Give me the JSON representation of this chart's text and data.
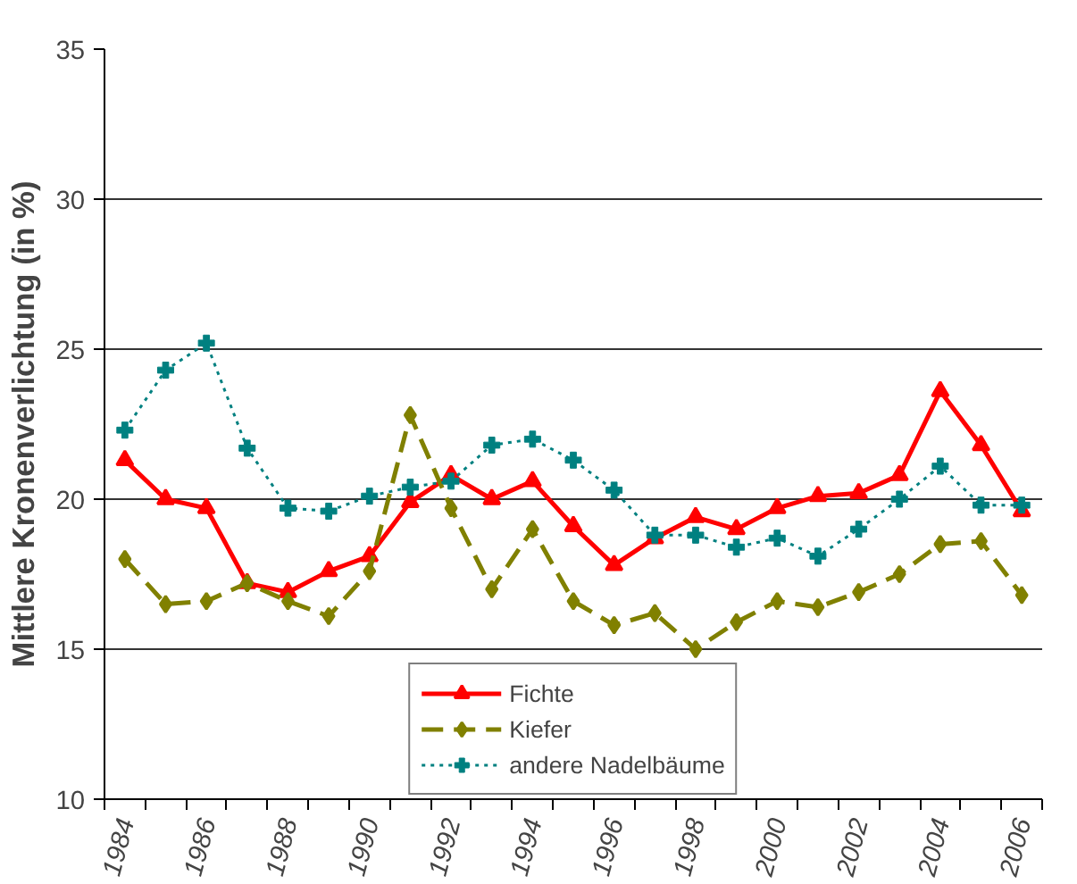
{
  "chart_data": {
    "type": "line",
    "ylabel": "Mittlere Kronenverlichtung (in %)",
    "categories": [
      "1984",
      null,
      "1986",
      null,
      "1988",
      null,
      "1990",
      null,
      "1992",
      null,
      "1994",
      null,
      "1996",
      null,
      "1998",
      null,
      "2000",
      null,
      "2002",
      null,
      "2004",
      null,
      "2006"
    ],
    "ylim": [
      10,
      35
    ],
    "yticks": [
      10,
      15,
      20,
      25,
      30,
      35
    ],
    "grid": "y",
    "legend": "bottom",
    "series": [
      {
        "name": "Fichte",
        "color": "#ff0000",
        "marker": "triangle",
        "line_style": "solid",
        "values": [
          21.3,
          20.0,
          19.7,
          17.2,
          16.9,
          17.6,
          18.1,
          19.9,
          20.8,
          20.0,
          20.6,
          19.1,
          17.8,
          18.7,
          19.4,
          19.0,
          19.7,
          20.1,
          20.2,
          20.8,
          23.6,
          21.8,
          19.6
        ]
      },
      {
        "name": "Kiefer",
        "color": "#808000",
        "marker": "diamond",
        "line_style": "dashed",
        "values": [
          18.0,
          16.5,
          16.6,
          17.2,
          16.6,
          16.1,
          17.6,
          22.8,
          19.7,
          17.0,
          19.0,
          16.6,
          15.8,
          16.2,
          15.0,
          15.9,
          16.6,
          16.4,
          16.9,
          17.5,
          18.5,
          18.6,
          16.8
        ]
      },
      {
        "name": "andere Nadelbäume",
        "color": "#008080",
        "marker": "cross",
        "line_style": "dotted",
        "values": [
          22.3,
          24.3,
          25.2,
          21.7,
          19.7,
          19.6,
          20.1,
          20.4,
          20.6,
          21.8,
          22.0,
          21.3,
          20.3,
          18.8,
          18.8,
          18.4,
          18.7,
          18.1,
          19.0,
          20.0,
          21.1,
          19.8,
          19.8
        ]
      }
    ]
  }
}
